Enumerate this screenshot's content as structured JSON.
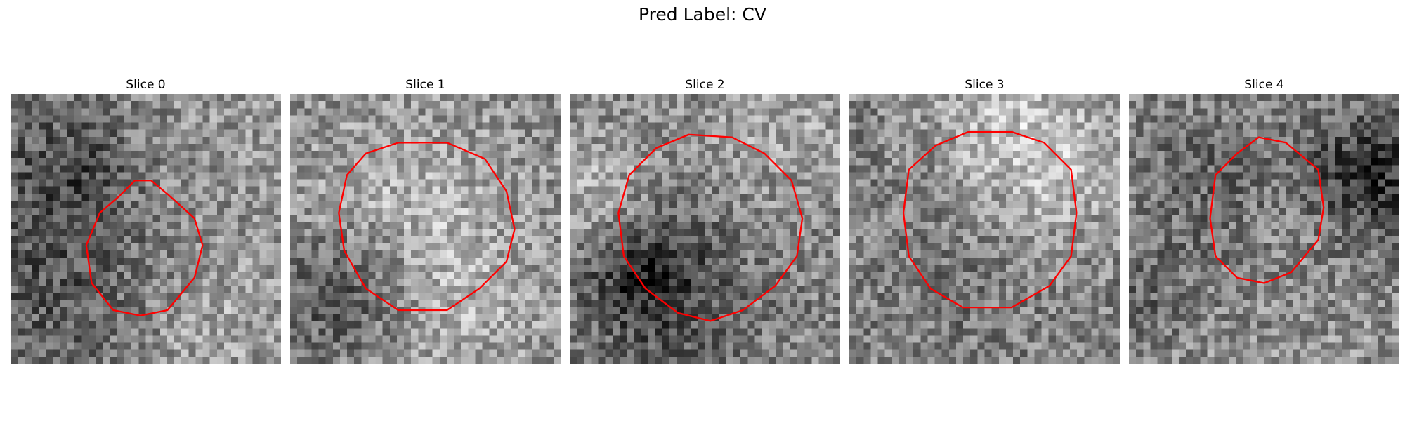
{
  "figure": {
    "title": "Pred Label: CV"
  },
  "panels": [
    {
      "title": "Slice 0",
      "seed": 11,
      "base": 150,
      "contour": [
        [
          29.0,
          18.5
        ],
        [
          34.0,
          23.0
        ],
        [
          35.5,
          28.0
        ],
        [
          34.0,
          34.0
        ],
        [
          29.0,
          40.0
        ],
        [
          24.0,
          41.0
        ],
        [
          19.0,
          40.0
        ],
        [
          15.0,
          35.0
        ],
        [
          14.0,
          28.0
        ],
        [
          16.5,
          22.0
        ],
        [
          20.0,
          19.0
        ],
        [
          23.0,
          16.0
        ],
        [
          26.0,
          16.0
        ]
      ]
    },
    {
      "title": "Slice 1",
      "seed": 23,
      "base": 140,
      "contour": [
        [
          29.0,
          9.0
        ],
        [
          36.0,
          12.0
        ],
        [
          40.0,
          18.0
        ],
        [
          41.5,
          25.0
        ],
        [
          40.0,
          31.0
        ],
        [
          35.0,
          36.0
        ],
        [
          29.0,
          40.0
        ],
        [
          20.0,
          40.0
        ],
        [
          14.0,
          36.0
        ],
        [
          10.0,
          29.0
        ],
        [
          9.0,
          22.0
        ],
        [
          10.5,
          15.0
        ],
        [
          14.0,
          11.0
        ],
        [
          20.0,
          9.0
        ]
      ]
    },
    {
      "title": "Slice 2",
      "seed": 37,
      "base": 135,
      "contour": [
        [
          30.0,
          8.0
        ],
        [
          36.0,
          11.0
        ],
        [
          41.0,
          16.0
        ],
        [
          43.0,
          23.0
        ],
        [
          42.0,
          30.0
        ],
        [
          38.0,
          35.5
        ],
        [
          32.0,
          40.0
        ],
        [
          26.0,
          42.0
        ],
        [
          20.0,
          40.5
        ],
        [
          14.0,
          36.0
        ],
        [
          10.0,
          30.0
        ],
        [
          9.0,
          22.0
        ],
        [
          11.0,
          15.0
        ],
        [
          16.0,
          10.0
        ],
        [
          22.0,
          7.5
        ]
      ]
    },
    {
      "title": "Slice 3",
      "seed": 51,
      "base": 125,
      "contour": [
        [
          30.0,
          7.0
        ],
        [
          36.0,
          9.0
        ],
        [
          41.0,
          14.0
        ],
        [
          42.0,
          22.0
        ],
        [
          41.0,
          30.0
        ],
        [
          37.0,
          35.5
        ],
        [
          30.0,
          39.5
        ],
        [
          21.0,
          39.5
        ],
        [
          15.0,
          36.0
        ],
        [
          11.0,
          30.0
        ],
        [
          10.0,
          22.0
        ],
        [
          11.0,
          14.0
        ],
        [
          16.0,
          9.5
        ],
        [
          22.0,
          7.0
        ]
      ]
    },
    {
      "title": "Slice 4",
      "seed": 67,
      "base": 145,
      "contour": [
        [
          29.0,
          9.0
        ],
        [
          35.0,
          14.0
        ],
        [
          36.0,
          21.0
        ],
        [
          35.0,
          27.0
        ],
        [
          30.0,
          33.0
        ],
        [
          25.0,
          35.0
        ],
        [
          20.0,
          34.0
        ],
        [
          16.0,
          30.0
        ],
        [
          15.0,
          23.0
        ],
        [
          16.0,
          15.0
        ],
        [
          20.0,
          11.0
        ],
        [
          24.0,
          8.0
        ]
      ]
    }
  ],
  "colors": {
    "contour": "#ff0000",
    "background": "#ffffff"
  }
}
